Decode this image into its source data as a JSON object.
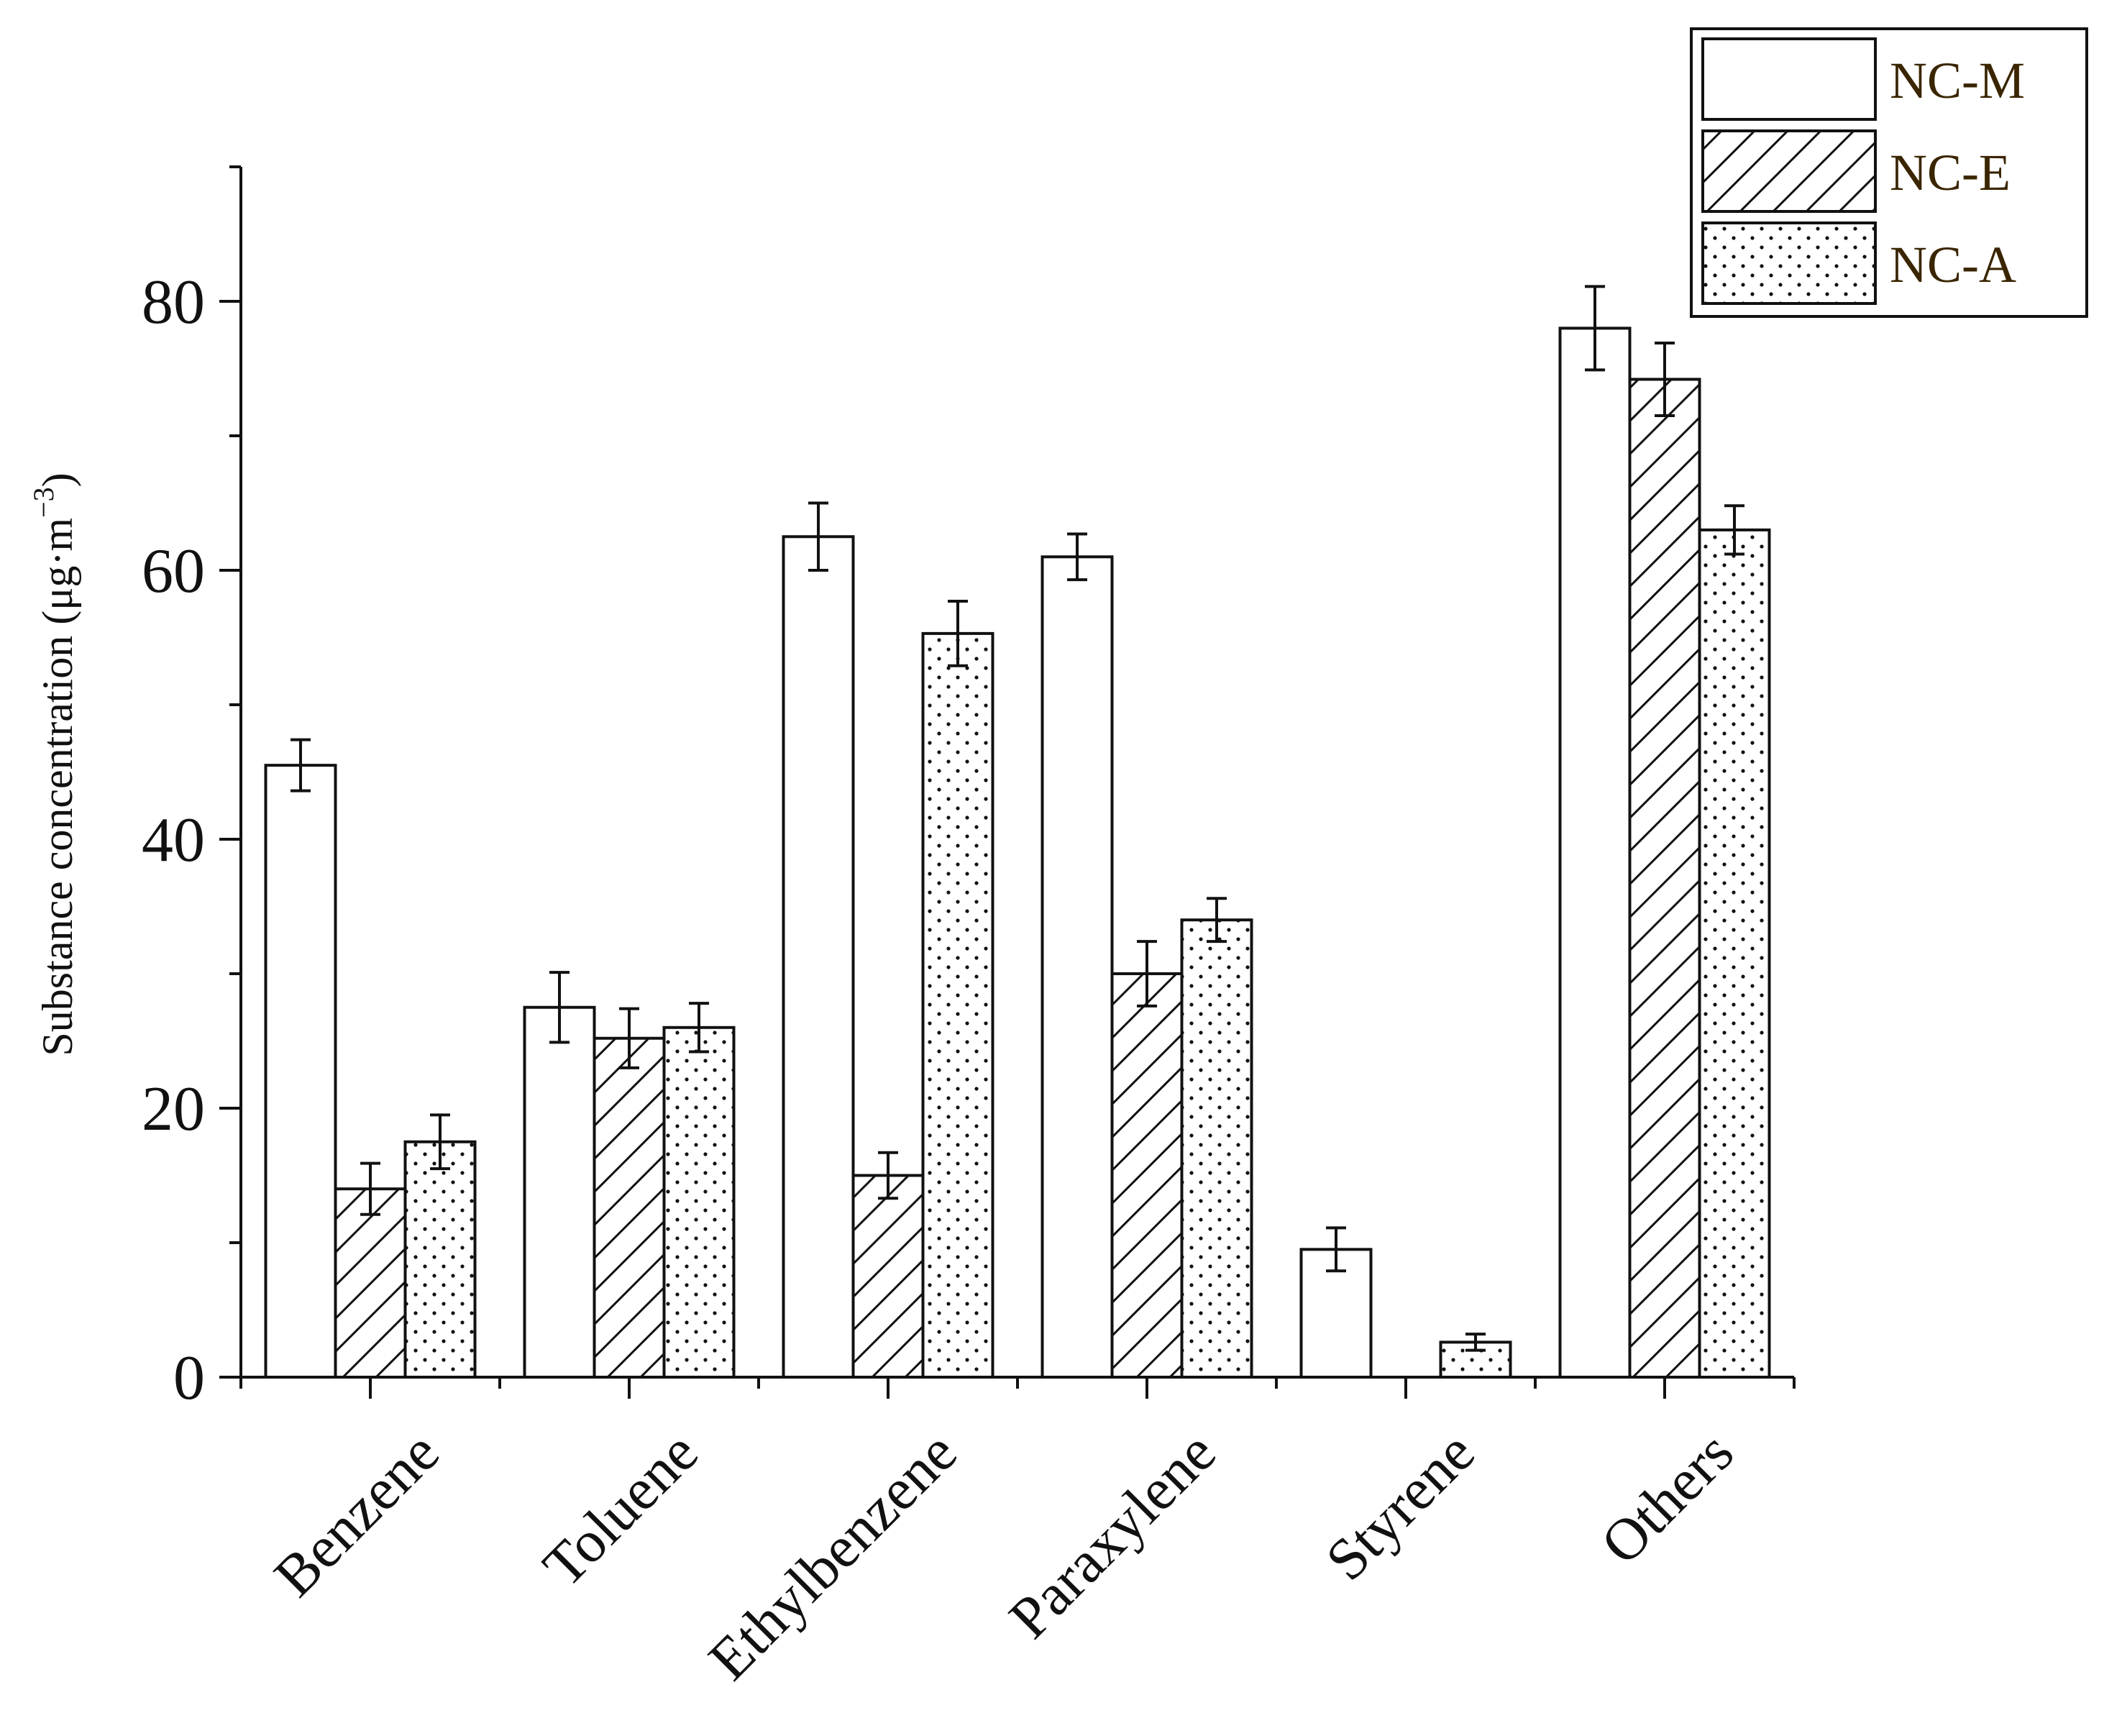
{
  "chart_data": {
    "type": "bar",
    "title": "",
    "xlabel": "",
    "ylabel": "Substance concentration (μg·m",
    "ylabel_sup": "−3",
    "ylabel_close": ")",
    "ylim": [
      0,
      90
    ],
    "yticks": [
      0,
      20,
      40,
      60,
      80
    ],
    "yticks_labels": [
      "0",
      "20",
      "40",
      "60",
      "80"
    ],
    "categories": [
      "Benzene",
      "Toluene",
      "Ethylbenzene",
      "Paraxylene",
      "Styrene",
      "Others"
    ],
    "series": [
      {
        "name": "NC-M",
        "pattern": "none",
        "values": [
          45.5,
          27.5,
          62.5,
          61.0,
          9.5,
          78.0
        ],
        "errors": [
          1.9,
          2.6,
          2.5,
          1.7,
          1.6,
          3.1
        ]
      },
      {
        "name": "NC-E",
        "pattern": "hatch",
        "values": [
          14.0,
          25.2,
          15.0,
          30.0,
          0,
          74.2
        ],
        "errors": [
          1.9,
          2.2,
          1.7,
          2.4,
          0,
          2.7
        ]
      },
      {
        "name": "NC-A",
        "pattern": "dots",
        "values": [
          17.5,
          26.0,
          55.3,
          34.0,
          2.6,
          63.0
        ],
        "errors": [
          2.0,
          1.8,
          2.4,
          1.6,
          0.6,
          1.8
        ]
      }
    ],
    "legend": "top-right",
    "grid": false,
    "colors": {
      "stroke": "#111111",
      "fill": "#ffffff",
      "legend_text": "#3a2500"
    }
  }
}
